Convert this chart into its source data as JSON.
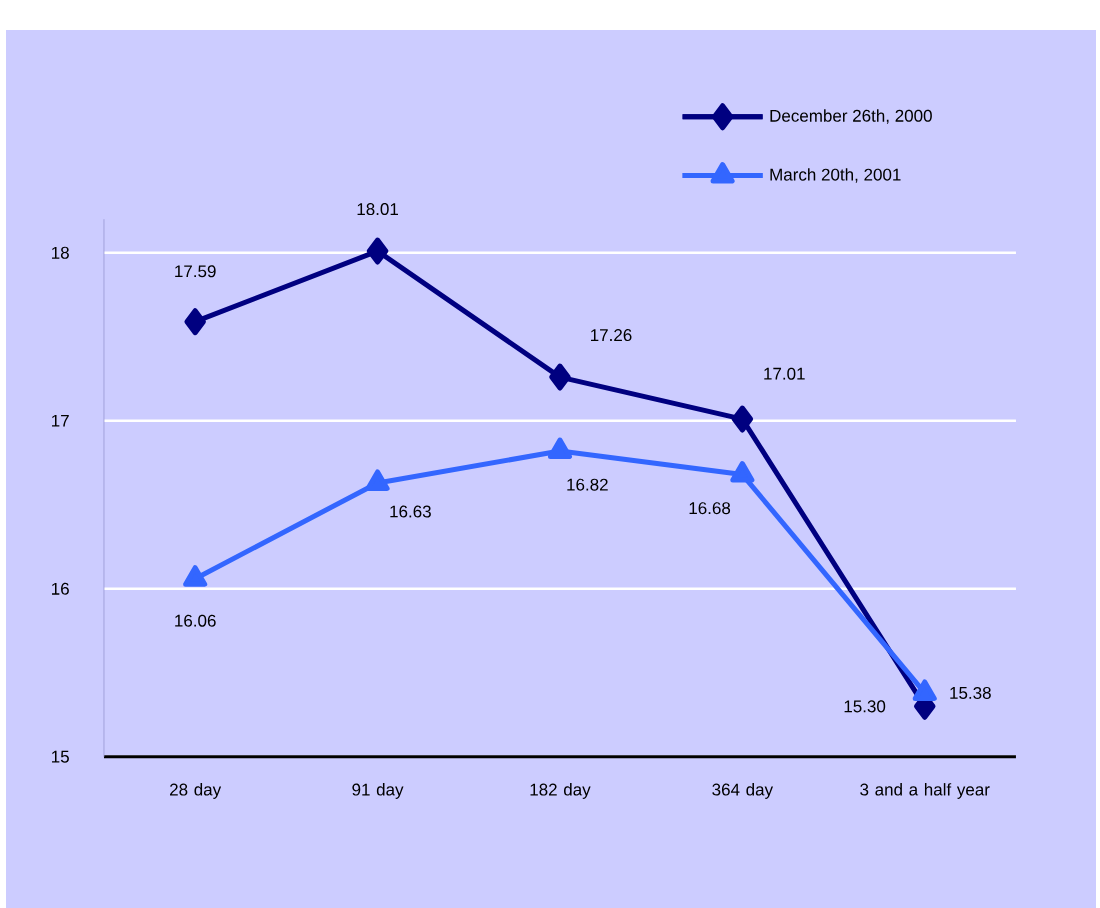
{
  "chart_data": {
    "type": "line",
    "categories": [
      "28 day",
      "91 day",
      "182 day",
      "364 day",
      "3 and a half year"
    ],
    "series": [
      {
        "name": "December 26th, 2000",
        "color": "#000080",
        "marker": "diamond",
        "values": [
          17.59,
          18.01,
          17.26,
          17.01,
          15.3
        ],
        "value_labels": [
          "17.59",
          "18.01",
          "17.26",
          "17.01",
          "15.30"
        ]
      },
      {
        "name": "March 20th, 2001",
        "color": "#3366ff",
        "marker": "triangle",
        "values": [
          16.06,
          16.63,
          16.82,
          16.68,
          15.38
        ],
        "value_labels": [
          "16.06",
          "16.63",
          "16.82",
          "16.68",
          "15.38"
        ]
      }
    ],
    "ylim": [
      15,
      18.2
    ],
    "yticks": [
      15,
      16,
      17,
      18
    ],
    "grid": "y",
    "legend": "top right",
    "line_style": "solid"
  }
}
